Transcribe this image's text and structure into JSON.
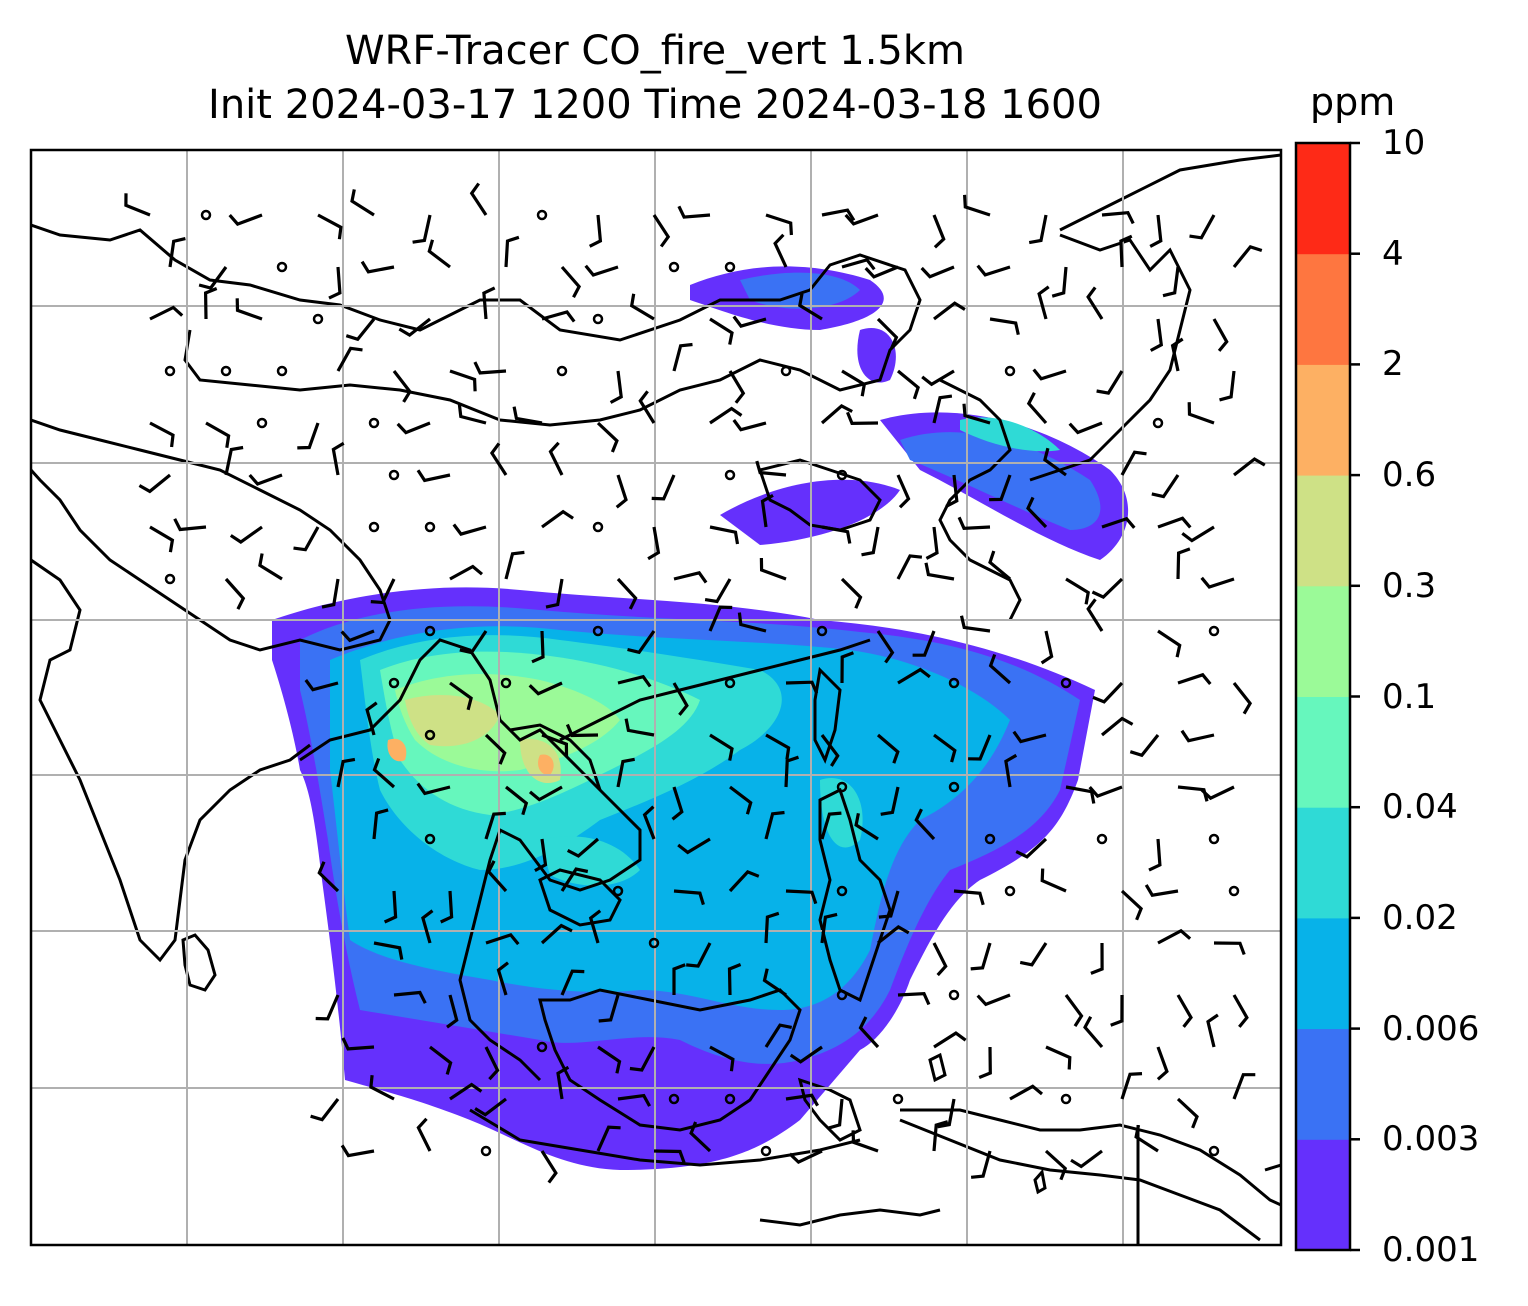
{
  "title": {
    "line1": "WRF-Tracer CO_fire_vert 1.5km",
    "line2": "Init 2024-03-17 1200 Time 2024-03-18 1600"
  },
  "colorbar": {
    "unit": "ppm",
    "levels": [
      "0.001",
      "0.003",
      "0.006",
      "0.02",
      "0.04",
      "0.1",
      "0.3",
      "0.6",
      "2",
      "4",
      "10"
    ],
    "colors": [
      "#6530fc",
      "#3a72f4",
      "#07b2e9",
      "#2fdad6",
      "#66f7bd",
      "#9bfa98",
      "#cee186",
      "#fdb063",
      "#fe7640",
      "#fe2a17"
    ]
  },
  "map": {
    "gridlines": true,
    "wind_barbs": true
  }
}
